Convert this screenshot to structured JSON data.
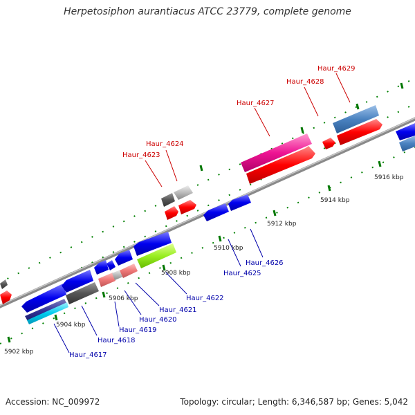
{
  "title": "Herpetosiphon aurantiacus ATCC 23779, complete genome",
  "footer": {
    "accession": "Accession: NC_009972",
    "summary": "Topology: circular; Length: 6,346,587 bp; Genes: 5,042"
  },
  "scale_labels": [
    "5902 kbp",
    "5904 kbp",
    "5906 kbp",
    "5908 kbp",
    "5910 kbp",
    "5912 kbp",
    "5914 kbp",
    "5916 kbp"
  ],
  "gene_labels_forward": [
    "Haur_4623",
    "Haur_4624",
    "Haur_4627",
    "Haur_4628",
    "Haur_4629"
  ],
  "gene_labels_reverse": [
    "Haur_4617",
    "Haur_4618",
    "Haur_4619",
    "Haur_4620",
    "Haur_4621",
    "Haur_4622",
    "Haur_4625",
    "Haur_4626"
  ],
  "colors": {
    "forward_label": "#cc0000",
    "reverse_label": "#0000aa",
    "tick": "#007700",
    "backbone": "#888888"
  }
}
